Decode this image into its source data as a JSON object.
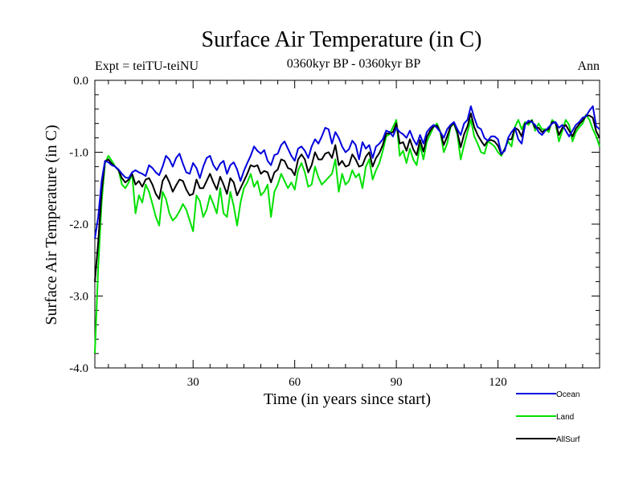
{
  "chart_data": {
    "type": "line",
    "title": "Surface Air Temperature (in C)",
    "subtitle": "0360kyr BP - 0360kyr BP",
    "left_label": "Expt = teiTU-teiNU",
    "right_label": "Ann",
    "xlabel": "Time (in years since start)",
    "ylabel": "Surface Air Temperature (in C)",
    "xlim": [
      1,
      150
    ],
    "ylim": [
      -4.0,
      0.0
    ],
    "x_ticks": [
      30,
      60,
      90,
      120
    ],
    "x_tick_labels": [
      "30",
      "60",
      "90",
      "120"
    ],
    "y_ticks": [
      0.0,
      -1.0,
      -2.0,
      -3.0,
      -4.0
    ],
    "y_tick_labels": [
      "0.0",
      "-1.0",
      "-2.0",
      "-3.0",
      "-4.0"
    ],
    "series": [
      {
        "name": "Ocean",
        "color": "#0000dd",
        "values": [
          -2.2,
          -1.9,
          -1.4,
          -1.12,
          -1.14,
          -1.18,
          -1.2,
          -1.24,
          -1.3,
          -1.35,
          -1.36,
          -1.28,
          -1.25,
          -1.28,
          -1.3,
          -1.33,
          -1.18,
          -1.22,
          -1.28,
          -1.32,
          -1.2,
          -1.05,
          -1.1,
          -1.2,
          -1.08,
          -1.02,
          -1.16,
          -1.28,
          -1.3,
          -1.15,
          -1.22,
          -1.36,
          -1.2,
          -1.08,
          -1.05,
          -1.18,
          -1.25,
          -1.16,
          -1.12,
          -1.3,
          -1.18,
          -1.14,
          -1.24,
          -1.4,
          -1.26,
          -1.15,
          -1.05,
          -0.92,
          -0.98,
          -1.02,
          -0.97,
          -1.12,
          -1.18,
          -1.04,
          -1.02,
          -0.9,
          -0.85,
          -0.95,
          -1.05,
          -1.12,
          -0.95,
          -0.92,
          -0.98,
          -1.08,
          -0.92,
          -0.82,
          -0.88,
          -0.78,
          -0.66,
          -0.68,
          -0.88,
          -0.72,
          -0.8,
          -0.92,
          -1.0,
          -0.96,
          -0.84,
          -0.9,
          -1.1,
          -0.86,
          -0.95,
          -0.9,
          -1.08,
          -0.92,
          -0.88,
          -0.82,
          -0.7,
          -0.72,
          -0.78,
          -0.66,
          -0.72,
          -0.75,
          -0.8,
          -0.7,
          -0.82,
          -0.9,
          -0.76,
          -0.88,
          -0.72,
          -0.66,
          -0.62,
          -0.66,
          -0.72,
          -0.8,
          -0.68,
          -0.62,
          -0.58,
          -0.68,
          -0.76,
          -0.6,
          -0.55,
          -0.36,
          -0.52,
          -0.65,
          -0.68,
          -0.8,
          -0.84,
          -0.78,
          -0.78,
          -0.82,
          -1.02,
          -0.98,
          -0.8,
          -0.72,
          -0.66,
          -0.82,
          -0.88,
          -0.62,
          -0.56,
          -0.58,
          -0.62,
          -0.72,
          -0.76,
          -0.7,
          -0.65,
          -0.6,
          -0.58,
          -0.66,
          -0.62,
          -0.7,
          -0.78,
          -0.7,
          -0.62,
          -0.58,
          -0.52,
          -0.5,
          -0.42,
          -0.36,
          -0.64,
          -0.68
        ]
      },
      {
        "name": "Land",
        "color": "#00e000",
        "values": [
          -3.8,
          -2.6,
          -1.7,
          -1.15,
          -1.05,
          -1.12,
          -1.2,
          -1.25,
          -1.45,
          -1.5,
          -1.42,
          -1.3,
          -1.85,
          -1.6,
          -1.7,
          -1.45,
          -1.55,
          -1.72,
          -1.9,
          -2.02,
          -1.55,
          -1.65,
          -1.85,
          -1.95,
          -1.9,
          -1.82,
          -1.72,
          -1.8,
          -1.95,
          -2.1,
          -1.6,
          -1.68,
          -1.9,
          -1.8,
          -1.6,
          -1.72,
          -1.85,
          -1.5,
          -1.85,
          -1.9,
          -1.55,
          -1.75,
          -2.02,
          -1.7,
          -1.5,
          -1.42,
          -1.3,
          -1.48,
          -1.4,
          -1.6,
          -1.55,
          -1.45,
          -1.9,
          -1.55,
          -1.45,
          -1.3,
          -1.4,
          -1.5,
          -1.42,
          -1.52,
          -1.25,
          -1.15,
          -1.28,
          -1.48,
          -1.45,
          -1.2,
          -1.35,
          -1.45,
          -1.4,
          -1.35,
          -1.3,
          -1.1,
          -1.55,
          -1.3,
          -1.45,
          -1.4,
          -1.25,
          -1.35,
          -1.3,
          -1.5,
          -1.2,
          -1.1,
          -1.38,
          -1.25,
          -1.15,
          -0.98,
          -0.78,
          -0.75,
          -0.65,
          -0.55,
          -1.05,
          -0.98,
          -1.15,
          -0.95,
          -1.1,
          -1.18,
          -0.9,
          -1.1,
          -0.85,
          -0.75,
          -0.65,
          -0.6,
          -0.72,
          -1.0,
          -0.88,
          -0.65,
          -0.6,
          -0.75,
          -1.1,
          -0.9,
          -0.72,
          -0.55,
          -0.78,
          -0.88,
          -1.0,
          -1.02,
          -0.85,
          -0.88,
          -0.92,
          -1.0,
          -1.05,
          -0.95,
          -0.85,
          -0.92,
          -0.65,
          -0.55,
          -0.68,
          -0.58,
          -0.62,
          -0.55,
          -0.7,
          -0.6,
          -0.68,
          -0.68,
          -0.72,
          -0.55,
          -0.6,
          -0.85,
          -0.7,
          -0.55,
          -0.62,
          -0.85,
          -0.72,
          -0.65,
          -0.6,
          -0.48,
          -0.55,
          -0.68,
          -0.78,
          -0.92
        ]
      },
      {
        "name": "AllSurf",
        "color": "#000000",
        "values": [
          -2.8,
          -2.25,
          -1.55,
          -1.13,
          -1.1,
          -1.16,
          -1.2,
          -1.25,
          -1.36,
          -1.42,
          -1.38,
          -1.3,
          -1.45,
          -1.4,
          -1.48,
          -1.38,
          -1.36,
          -1.45,
          -1.58,
          -1.65,
          -1.4,
          -1.32,
          -1.42,
          -1.55,
          -1.46,
          -1.38,
          -1.4,
          -1.52,
          -1.6,
          -1.58,
          -1.38,
          -1.5,
          -1.5,
          -1.4,
          -1.3,
          -1.42,
          -1.52,
          -1.34,
          -1.45,
          -1.58,
          -1.36,
          -1.42,
          -1.6,
          -1.5,
          -1.4,
          -1.3,
          -1.18,
          -1.2,
          -1.18,
          -1.3,
          -1.26,
          -1.28,
          -1.42,
          -1.28,
          -1.24,
          -1.1,
          -1.12,
          -1.22,
          -1.24,
          -1.32,
          -1.1,
          -1.03,
          -1.1,
          -1.28,
          -1.18,
          -1.0,
          -1.1,
          -1.1,
          -1.02,
          -1.0,
          -1.08,
          -0.9,
          -1.18,
          -1.12,
          -1.2,
          -1.18,
          -1.03,
          -1.1,
          -1.2,
          -1.18,
          -1.06,
          -1.0,
          -1.2,
          -1.08,
          -1.01,
          -0.9,
          -0.74,
          -0.74,
          -0.72,
          -0.6,
          -0.88,
          -0.86,
          -0.98,
          -0.82,
          -0.96,
          -1.04,
          -0.83,
          -0.99,
          -0.79,
          -0.7,
          -0.64,
          -0.63,
          -0.72,
          -0.9,
          -0.78,
          -0.64,
          -0.59,
          -0.72,
          -0.93,
          -0.75,
          -0.64,
          -0.46,
          -0.65,
          -0.76,
          -0.84,
          -0.91,
          -0.84,
          -0.83,
          -0.85,
          -0.91,
          -1.03,
          -0.96,
          -0.82,
          -0.82,
          -0.66,
          -0.69,
          -0.78,
          -0.6,
          -0.59,
          -0.56,
          -0.66,
          -0.66,
          -0.72,
          -0.69,
          -0.68,
          -0.58,
          -0.59,
          -0.76,
          -0.66,
          -0.62,
          -0.7,
          -0.78,
          -0.67,
          -0.61,
          -0.56,
          -0.49,
          -0.49,
          -0.52,
          -0.71,
          -0.8
        ]
      }
    ],
    "legend_position": "bottom-right"
  }
}
